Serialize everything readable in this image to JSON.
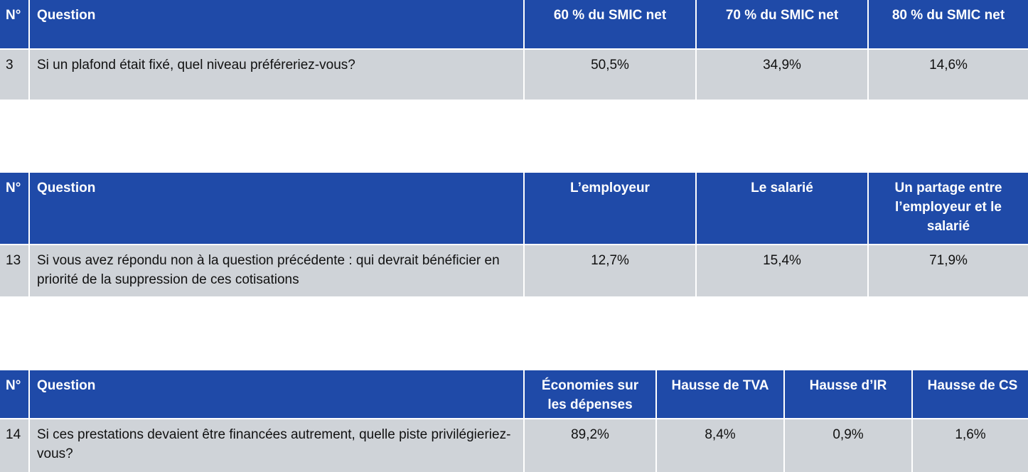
{
  "tables": [
    {
      "header": [
        "N°",
        "Question",
        "60 % du SMIC net",
        "70 % du SMIC net",
        "80 % du SMIC net"
      ],
      "rows": [
        [
          "3",
          "Si un plafond était fixé, quel niveau préféreriez-vous?",
          "50,5%",
          "34,9%",
          "14,6%"
        ]
      ]
    },
    {
      "header": [
        "N°",
        "Question",
        "L’employeur",
        "Le salarié",
        "Un partage entre l’employeur et le salarié"
      ],
      "rows": [
        [
          "13",
          "Si vous avez répondu non à la question précédente : qui devrait bénéficier en priorité de la suppression de ces cotisations",
          "12,7%",
          "15,4%",
          "71,9%"
        ]
      ]
    },
    {
      "header": [
        "N°",
        "Question",
        "Économies sur les dépenses",
        "Hausse de TVA",
        "Hausse d’IR",
        "Hausse de CS"
      ],
      "rows": [
        [
          "14",
          "Si ces prestations devaient être financées autrement, quelle piste privilégieriez-vous?",
          "89,2%",
          "8,4%",
          "0,9%",
          "1,6%"
        ]
      ]
    }
  ]
}
